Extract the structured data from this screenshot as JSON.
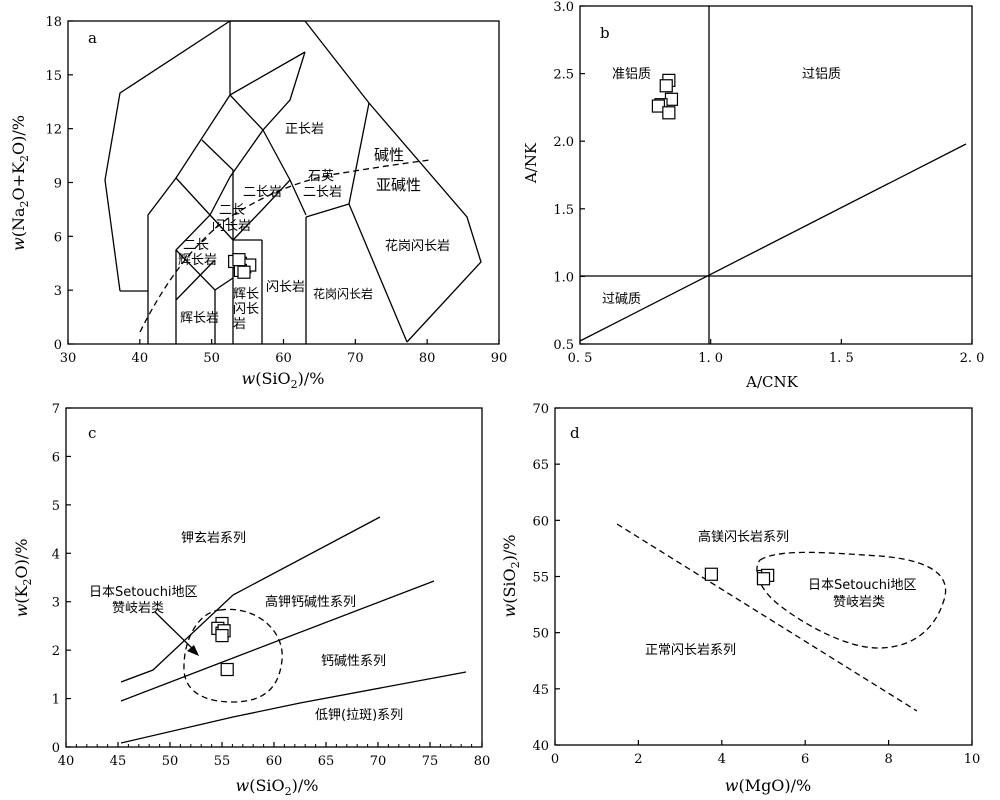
{
  "chart_data": [
    {
      "panel": "a",
      "type": "scatter",
      "xlabel": "w(SiO2)/%",
      "ylabel": "w(Na2O+K2O)/%",
      "xlim": [
        30,
        90
      ],
      "ylim": [
        0,
        18
      ],
      "xticks": [
        30,
        40,
        50,
        60,
        70,
        80,
        90
      ],
      "yticks": [
        0,
        3,
        6,
        9,
        12,
        15,
        18
      ],
      "field_labels": [
        "正长岩",
        "石英",
        "二长岩",
        "二长岩",
        "二长",
        "闪长岩",
        "二长",
        "辉长岩",
        "辉长",
        "闪长",
        "岩",
        "辉长岩",
        "闪长岩",
        "花岗闪长岩",
        "花岗闪长岩",
        "碱性",
        "亚碱性"
      ],
      "points": [
        {
          "x": 53.2,
          "y": 4.6
        },
        {
          "x": 54.0,
          "y": 4.5
        },
        {
          "x": 54.6,
          "y": 4.3
        },
        {
          "x": 55.3,
          "y": 4.4
        },
        {
          "x": 54.0,
          "y": 4.1
        },
        {
          "x": 54.5,
          "y": 4.0
        },
        {
          "x": 53.8,
          "y": 4.7
        }
      ]
    },
    {
      "panel": "b",
      "type": "scatter",
      "xlabel": "A/CNK",
      "ylabel": "A/NK",
      "xlim": [
        0.5,
        2.0
      ],
      "ylim": [
        0.5,
        3.0
      ],
      "xtick_labels": [
        "0. 5",
        "1. 0",
        "1. 5",
        "2. 0"
      ],
      "ytick_labels": [
        "0.5",
        "1.0",
        "1.5",
        "2.0",
        "2.5",
        "3.0"
      ],
      "field_labels": [
        "准铝质",
        "过铝质",
        "过碱质"
      ],
      "points": [
        {
          "x": 0.84,
          "y": 2.45
        },
        {
          "x": 0.83,
          "y": 2.41
        },
        {
          "x": 0.85,
          "y": 2.31
        },
        {
          "x": 0.81,
          "y": 2.27
        },
        {
          "x": 0.8,
          "y": 2.26
        },
        {
          "x": 0.84,
          "y": 2.21
        }
      ]
    },
    {
      "panel": "c",
      "type": "scatter",
      "xlabel": "w(SiO2)/%",
      "ylabel": "w(K2O)/%",
      "xlim": [
        40,
        80
      ],
      "ylim": [
        0,
        7
      ],
      "xticks": [
        40,
        45,
        50,
        55,
        60,
        65,
        70,
        75,
        80
      ],
      "yticks": [
        0,
        1,
        2,
        3,
        4,
        5,
        6,
        7
      ],
      "field_labels": [
        "钾玄岩系列",
        "高钾钙碱性系列",
        "钙碱性系列",
        "低钾(拉斑)系列"
      ],
      "annotation": [
        "日本Setouchi地区",
        "赞岐岩类"
      ],
      "points": [
        {
          "x": 55.0,
          "y": 2.55
        },
        {
          "x": 54.6,
          "y": 2.45
        },
        {
          "x": 55.0,
          "y": 2.35
        },
        {
          "x": 55.2,
          "y": 2.4
        },
        {
          "x": 55.0,
          "y": 2.3
        },
        {
          "x": 55.5,
          "y": 1.6
        }
      ]
    },
    {
      "panel": "d",
      "type": "scatter",
      "xlabel": "w(MgO)/%",
      "ylabel": "w(SiO2)/%",
      "xlim": [
        0,
        10
      ],
      "ylim": [
        40,
        70
      ],
      "xticks": [
        0,
        2,
        4,
        6,
        8,
        10
      ],
      "yticks": [
        40,
        45,
        50,
        55,
        60,
        65,
        70
      ],
      "field_labels": [
        "高镁闪长岩系列",
        "正常闪长岩系列"
      ],
      "annotation": [
        "日本Setouchi地区",
        "赞岐岩类"
      ],
      "points": [
        {
          "x": 3.75,
          "y": 55.2
        },
        {
          "x": 5.0,
          "y": 55.0
        },
        {
          "x": 5.1,
          "y": 55.1
        },
        {
          "x": 5.0,
          "y": 54.8
        }
      ]
    }
  ],
  "panels": {
    "a": {
      "label": "a",
      "xlabel_parts": [
        "w",
        "(SiO",
        "2",
        ")/%"
      ],
      "ylabel_parts": [
        "w",
        "(Na",
        "2",
        "O+K",
        "2",
        "O)/%"
      ]
    },
    "b": {
      "label": "b",
      "xlabel": "A/CNK",
      "ylabel": "A/NK"
    },
    "c": {
      "label": "c",
      "xlabel_parts": [
        "w",
        "(SiO",
        "2",
        ")/%"
      ],
      "ylabel_parts": [
        "w",
        "(K",
        "2",
        "O)/%"
      ]
    },
    "d": {
      "label": "d",
      "xlabel_parts": [
        "w",
        "(MgO)/%"
      ],
      "ylabel_parts": [
        "w",
        "(SiO",
        "2",
        ")/%"
      ]
    }
  }
}
